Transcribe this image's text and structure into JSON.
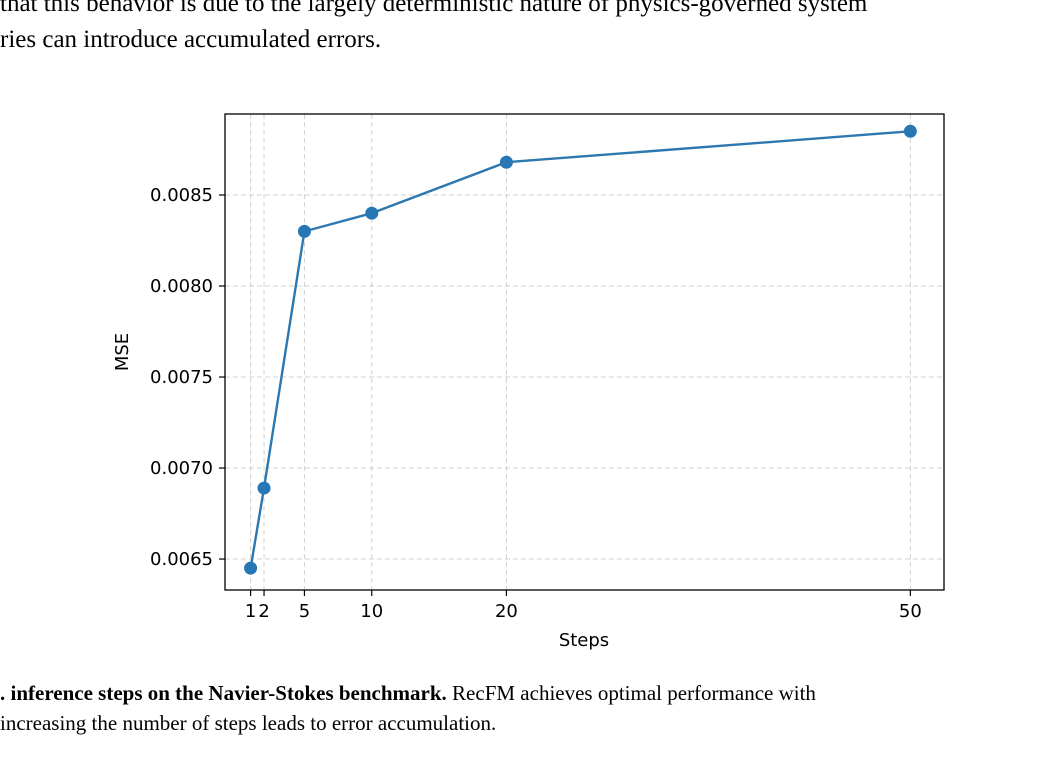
{
  "top_text": {
    "line1": "that this behavior is due to the largely deterministic nature of physics-governed system",
    "line2": "ries can introduce accumulated errors."
  },
  "chart_data": {
    "type": "line",
    "x": [
      1,
      2,
      5,
      10,
      20,
      50
    ],
    "y": [
      0.00645,
      0.00689,
      0.0083,
      0.0084,
      0.00868,
      0.00885
    ],
    "xticks": [
      1,
      2,
      5,
      10,
      20,
      50
    ],
    "xtick_labels": [
      "1",
      "2",
      "5",
      "10",
      "20",
      "50"
    ],
    "yticks": [
      0.0065,
      0.007,
      0.0075,
      0.008,
      0.0085
    ],
    "ytick_labels": [
      "0.0065",
      "0.0070",
      "0.0075",
      "0.0080",
      "0.0085"
    ],
    "xlabel": "Steps",
    "ylabel": "MSE",
    "xlim": [
      -0.9,
      52.5
    ],
    "ylim": [
      0.00633,
      0.008945
    ],
    "grid": true,
    "grid_style": "dashed",
    "marker": "circle",
    "line_color": "#2d78b0",
    "marker_color": "#2677b4"
  },
  "caption": {
    "bold": ". inference steps on the Navier-Stokes benchmark.",
    "rest": " RecFM achieves optimal performance with",
    "line2": "increasing the number of steps leads to error accumulation."
  }
}
